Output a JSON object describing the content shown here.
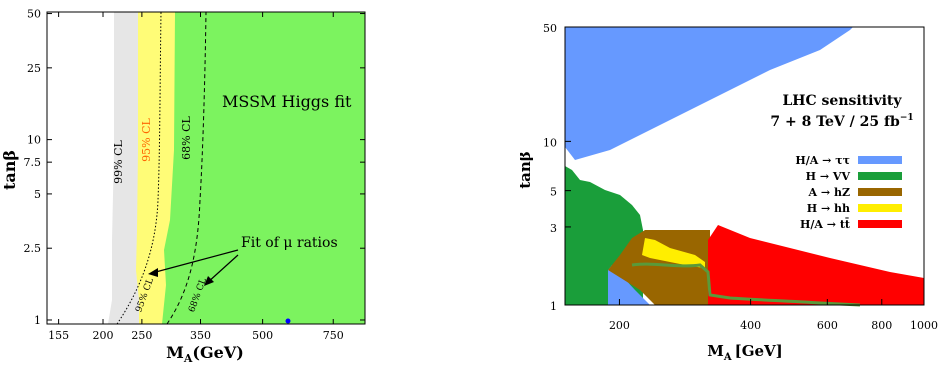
{
  "chart_data": [
    {
      "type": "area",
      "title": "MSSM Higgs fit",
      "xlabel": "M_A (GeV)",
      "ylabel": "tanβ",
      "xscale": "log",
      "yscale": "log",
      "xlim": [
        145,
        900
      ],
      "ylim": [
        0.95,
        51
      ],
      "xticks": [
        155,
        200,
        250,
        350,
        500,
        750
      ],
      "xtick_labels": [
        "155",
        "200",
        "250",
        "350",
        "500",
        "750"
      ],
      "yticks": [
        1,
        2.5,
        5,
        7.5,
        10,
        25,
        50
      ],
      "ytick_labels": [
        "1",
        "2.5",
        "5",
        "7.5",
        "10",
        "25",
        "50"
      ],
      "regions": [
        {
          "name": "99% CL",
          "color": "#e6e6e6",
          "boundary_x": [
            300,
            214,
            208,
            211,
            214,
            218,
            218
          ],
          "boundary_y": [
            0.95,
            1.15,
            1.6,
            3,
            8,
            25,
            51
          ]
        },
        {
          "name": "95% CL",
          "color": "#fffc77",
          "boundary_x": [
            300,
            246,
            238,
            240,
            242,
            244,
            244
          ],
          "boundary_y": [
            0.95,
            1.2,
            1.7,
            3,
            8,
            25,
            51
          ]
        },
        {
          "name": "68% CL",
          "color": "#7cf35f",
          "boundary_x": [
            300,
            290,
            283,
            281,
            282,
            285,
            289
          ],
          "boundary_y": [
            0.95,
            1.4,
            2.0,
            3,
            8,
            25,
            51
          ]
        }
      ],
      "contours": [
        {
          "name": "95% CL",
          "style": "dotted",
          "x": [
            210,
            225,
            240,
            253,
            260,
            265,
            268,
            270,
            271
          ],
          "y": [
            1,
            1.4,
            2,
            3,
            5,
            8,
            15,
            30,
            51
          ]
        },
        {
          "name": "68% CL",
          "style": "dashed",
          "x": [
            260,
            285,
            305,
            320,
            330,
            338,
            342,
            346,
            348
          ],
          "y": [
            1,
            1.4,
            2,
            3,
            5,
            8,
            15,
            30,
            51
          ]
        }
      ],
      "contour_labels": [
        {
          "text": "99% CL",
          "x": 218,
          "y": 7,
          "color": "#000000"
        },
        {
          "text": "95% CL",
          "x": 244,
          "y": 7,
          "color": "#ff6600"
        },
        {
          "text": "68% CL",
          "x": 290,
          "y": 7,
          "color": "#000000"
        },
        {
          "text": "95% CL",
          "x": 246,
          "y": 1.4,
          "color": "#000000"
        },
        {
          "text": "68% CL",
          "x": 320,
          "y": 1.4,
          "color": "#000000"
        }
      ],
      "annotations": [
        "MSSM Higgs fit",
        "Fit of μ ratios"
      ],
      "best_fit_point": {
        "x": 550,
        "y": 1.0,
        "color": "#0000ff"
      }
    },
    {
      "type": "area",
      "title": "LHC sensitivity",
      "subtitle": "7 + 8 TeV / 25 fb⁻¹",
      "xlabel": "M_A [GeV]",
      "ylabel": "tanβ",
      "xscale": "log",
      "yscale": "log",
      "xlim": [
        150,
        1000
      ],
      "ylim": [
        1,
        50
      ],
      "xticks": [
        200,
        400,
        600,
        800,
        1000
      ],
      "xtick_labels": [
        "200",
        "400",
        "600",
        "800",
        "1000"
      ],
      "yticks": [
        1,
        3,
        5,
        10,
        50
      ],
      "ytick_labels": [
        "1",
        "3",
        "5",
        "10",
        "50"
      ],
      "legend": {
        "placement": "right",
        "entries": [
          {
            "label": "H/A → ττ",
            "color": "#6699ff"
          },
          {
            "label": "H → VV",
            "color": "#1a9e3a"
          },
          {
            "label": "A → hZ",
            "color": "#996600"
          },
          {
            "label": "H → hh",
            "color": "#ffee00"
          },
          {
            "label": "H/A → tt̄",
            "color": "#ff0000"
          }
        ]
      },
      "regions": [
        {
          "name": "H/A → ττ",
          "color": "#6699ff",
          "x": [
            150,
            150,
            155,
            200,
            260,
            350,
            450,
            550,
            700,
            1000,
            1000
          ],
          "y": [
            50,
            4.2,
            4.5,
            5.3,
            7,
            10,
            14,
            20,
            30,
            50,
            50
          ]
        },
        {
          "name": "H/A → ττ",
          "color": "#6699ff",
          "x": [
            200,
            220,
            260,
            200
          ],
          "y": [
            1,
            1.6,
            1,
            1
          ]
        },
        {
          "name": "H → VV",
          "color": "#1a9e3a",
          "x": [
            150,
            150,
            160,
            170,
            190,
            210,
            240,
            260,
            265,
            200,
            200,
            150
          ],
          "y": [
            1,
            6.8,
            7,
            5.3,
            5.6,
            5.1,
            4.4,
            3.9,
            1,
            1,
            1.75,
            1.75
          ]
        },
        {
          "name": "A → hZ",
          "color": "#996600",
          "x": [
            225,
            240,
            260,
            280,
            300,
            340,
            340,
            315,
            300,
            280,
            262,
            245,
            232,
            225
          ],
          "y": [
            1.85,
            2.35,
            2.8,
            2.8,
            2.8,
            2.8,
            1.4,
            1.4,
            1.45,
            1.5,
            1.55,
            1.9,
            1.9,
            1.85
          ]
        },
        {
          "name": "H → hh",
          "color": "#ffee00",
          "x": [
            258,
            262,
            290,
            330,
            336,
            320,
            300,
            280,
            258
          ],
          "y": [
            2.0,
            2.55,
            2.3,
            2.05,
            1.95,
            1.9,
            1.95,
            1.95,
            2.0
          ]
        },
        {
          "name": "H/A → tt̄",
          "color": "#ff0000",
          "x": [
            340,
            370,
            430,
            520,
            620,
            720,
            820,
            1000,
            1000,
            340
          ],
          "y": [
            1.12,
            2.85,
            2.3,
            2.05,
            1.8,
            1.65,
            1.5,
            1.4,
            1,
            1
          ]
        }
      ],
      "boundary_line": {
        "color": "#5a9a3a",
        "x": [
          255,
          270,
          300,
          330,
          340,
          350,
          370,
          420,
          500,
          600,
          700
        ],
        "y": [
          2.4,
          2.2,
          2.05,
          1.9,
          1.2,
          1.15,
          1.12,
          1.08,
          1.05,
          1.03,
          1.02
        ]
      }
    }
  ],
  "left": {
    "title": "MSSM Higgs fit",
    "xlabel": "M",
    "xlabel_sub": "A",
    "xlabel_unit": "(GeV)",
    "ylabel": "tanβ",
    "arrow_label": "Fit of μ ratios",
    "cl99": "99% CL",
    "cl95": "95% CL",
    "cl68": "68% CL",
    "cl95b": "95% CL",
    "cl68b": "68% CL",
    "xticks": [
      "155",
      "200",
      "250",
      "350",
      "500",
      "750"
    ],
    "yticks": [
      "1",
      "2.5",
      "5",
      "7.5",
      "10",
      "25",
      "50"
    ]
  },
  "right": {
    "title": "LHC sensitivity",
    "subtitle": "7 + 8 TeV / 25 fb",
    "subtitle_sup": "−1",
    "xlabel": "M",
    "xlabel_sub": "A",
    "xlabel_unit": "[GeV]",
    "ylabel": "tanβ",
    "xticks": [
      "200",
      "400",
      "600",
      "800",
      "1000"
    ],
    "yticks": [
      "1",
      "3",
      "5",
      "10",
      "50"
    ],
    "legend": [
      "H/A → ττ",
      "H → VV",
      "A → hZ",
      "H → hh",
      "H/A → tt̄"
    ]
  },
  "colors": {
    "grey": "#e6e6e6",
    "yellow": "#fffc77",
    "green_light": "#7cf35f",
    "blue": "#6699ff",
    "green_dark": "#1a9e3a",
    "brown": "#996600",
    "yellow_bright": "#ffee00",
    "red": "#ff0000",
    "cl95_label": "#ff6600"
  }
}
